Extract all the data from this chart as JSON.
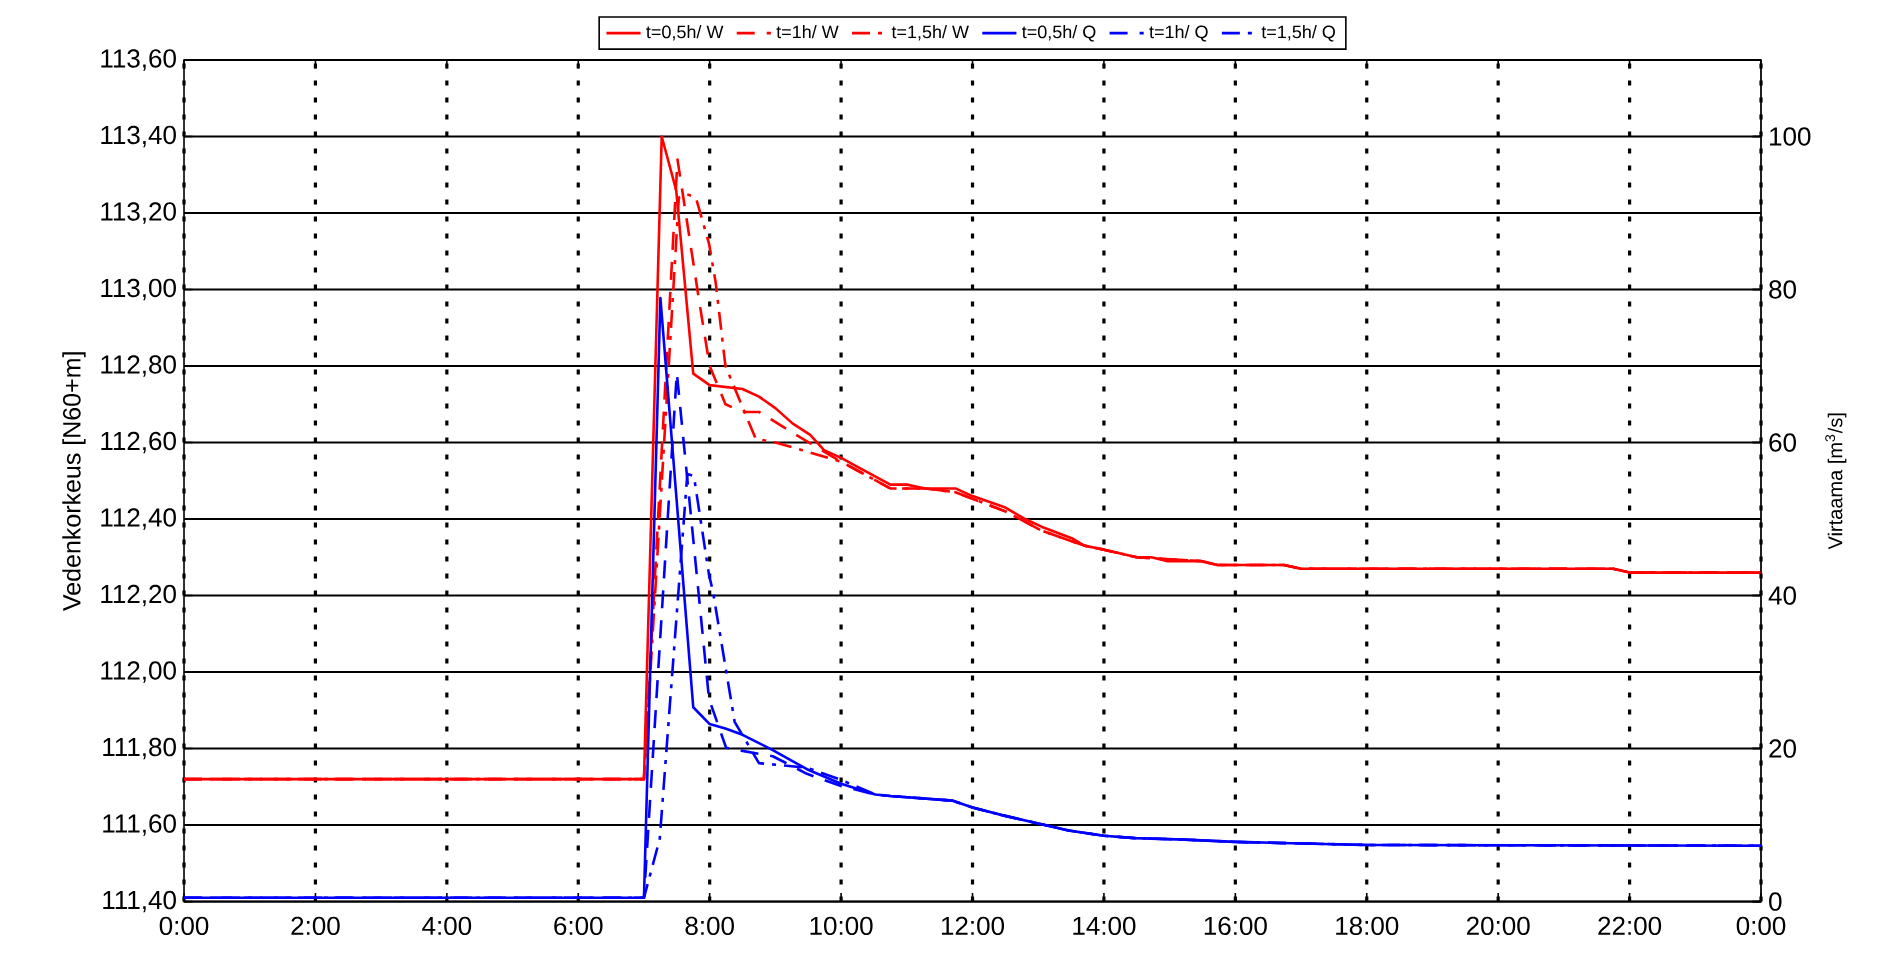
{
  "chart_data": {
    "type": "line",
    "xlabel": null,
    "ylabel": "Vedenkorkeus [N60+m]",
    "y2label": "Virtaama [m$^{3}$/s]",
    "xlim": [
      0,
      24
    ],
    "xticks": [
      {
        "value": 0,
        "label": "0:00"
      },
      {
        "value": 2,
        "label": "2:00"
      },
      {
        "value": 4,
        "label": "4:00"
      },
      {
        "value": 6,
        "label": "6:00"
      },
      {
        "value": 8,
        "label": "8:00"
      },
      {
        "value": 10,
        "label": "10:00"
      },
      {
        "value": 12,
        "label": "12:00"
      },
      {
        "value": 14,
        "label": "14:00"
      },
      {
        "value": 16,
        "label": "16:00"
      },
      {
        "value": 18,
        "label": "18:00"
      },
      {
        "value": 20,
        "label": "20:00"
      },
      {
        "value": 22,
        "label": "22:00"
      },
      {
        "value": 24,
        "label": "0:00"
      }
    ],
    "ylim": [
      111.4,
      113.6
    ],
    "yticks": [
      {
        "value": 111.4,
        "label": "111,40"
      },
      {
        "value": 111.6,
        "label": "111,60"
      },
      {
        "value": 111.8,
        "label": "111,80"
      },
      {
        "value": 112.0,
        "label": "112,00"
      },
      {
        "value": 112.2,
        "label": "112,20"
      },
      {
        "value": 112.4,
        "label": "112,40"
      },
      {
        "value": 112.6,
        "label": "112,60"
      },
      {
        "value": 112.8,
        "label": "112,80"
      },
      {
        "value": 113.0,
        "label": "113,00"
      },
      {
        "value": 113.2,
        "label": "113,20"
      },
      {
        "value": 113.4,
        "label": "113,40"
      },
      {
        "value": 113.6,
        "label": "113,60"
      }
    ],
    "y2lim": [
      0,
      110
    ],
    "y2ticks": [
      0,
      20,
      40,
      60,
      80,
      100
    ],
    "grid": true,
    "legend": "top",
    "marker": "none",
    "series": [
      {
        "name": "t=0,5h/ W",
        "color": "#ff0000",
        "line_style": "solid",
        "x": [
          0,
          7.0,
          7.27,
          7.49,
          7.75,
          8.0,
          8.5,
          8.75,
          9.0,
          9.26,
          9.53,
          9.74,
          10.0,
          10.32,
          10.75,
          11.0,
          11.28,
          11.74,
          12.0,
          12.5,
          12.8,
          13.05,
          13.51,
          13.71,
          14.0,
          14.5,
          14.72,
          14.97,
          15.48,
          15.73,
          16.74,
          17.0,
          21.75,
          22.0,
          24
        ],
        "values": [
          111.72,
          111.72,
          113.4,
          113.26,
          112.78,
          112.75,
          112.74,
          112.72,
          112.69,
          112.65,
          112.62,
          112.58,
          112.56,
          112.53,
          112.49,
          112.49,
          112.48,
          112.48,
          112.46,
          112.43,
          112.4,
          112.38,
          112.35,
          112.33,
          112.32,
          112.3,
          112.3,
          112.29,
          112.29,
          112.28,
          112.28,
          112.27,
          112.27,
          112.26,
          112.26
        ]
      },
      {
        "name": "t=1h/ W",
        "color": "#ff0000",
        "line_style": "dashed",
        "x": [
          0,
          7.0,
          7.51,
          7.84,
          8.0,
          8.24,
          8.5,
          8.75,
          9.41,
          10.0,
          10.75,
          11.28,
          11.74,
          12.5,
          13.05,
          13.71,
          14.0,
          14.5,
          15.48,
          15.73,
          16.74,
          17.0,
          21.75,
          22.0,
          24
        ],
        "values": [
          111.72,
          111.72,
          113.34,
          112.97,
          112.8,
          112.7,
          112.68,
          112.68,
          112.61,
          112.55,
          112.48,
          112.48,
          112.47,
          112.42,
          112.37,
          112.33,
          112.32,
          112.3,
          112.29,
          112.28,
          112.28,
          112.27,
          112.27,
          112.26,
          112.26
        ]
      },
      {
        "name": "t=1,5h/ W",
        "color": "#ff0000",
        "line_style": "dashdot",
        "x": [
          0,
          7.0,
          7.53,
          7.64,
          7.79,
          7.99,
          8.09,
          8.24,
          8.7,
          9.0,
          9.41,
          10.0,
          10.75,
          11.28,
          11.74,
          12.5,
          13.05,
          13.71,
          14.0,
          14.5,
          15.48,
          15.73,
          16.74,
          17.0,
          21.75,
          22.0,
          24
        ],
        "values": [
          111.72,
          111.72,
          113.24,
          113.25,
          113.24,
          113.12,
          113.02,
          112.8,
          112.61,
          112.6,
          112.58,
          112.55,
          112.48,
          112.48,
          112.47,
          112.42,
          112.37,
          112.33,
          112.32,
          112.3,
          112.29,
          112.28,
          112.28,
          112.27,
          112.27,
          112.26,
          112.26
        ]
      },
      {
        "name": "t=0,5h/ Q",
        "color": "#0000ff",
        "line_style": "solid",
        "axis": "y2",
        "x": [
          0,
          7.0,
          7.25,
          7.75,
          8.0,
          8.25,
          8.5,
          8.96,
          9.48,
          10.0,
          10.52,
          10.75,
          11.69,
          12.0,
          12.45,
          13.1,
          13.46,
          14.0,
          14.47,
          15.23,
          16.0,
          17.0,
          18.0,
          24
        ],
        "values": [
          0.5,
          0.5,
          78.9,
          25.4,
          23.2,
          22.6,
          21.8,
          19.8,
          17.3,
          15.4,
          14.0,
          13.8,
          13.2,
          12.3,
          11.3,
          10.0,
          9.3,
          8.6,
          8.3,
          8.1,
          7.8,
          7.6,
          7.4,
          7.3
        ]
      },
      {
        "name": "t=1h/ Q",
        "color": "#0000ff",
        "line_style": "dashed",
        "axis": "y2",
        "x": [
          0,
          7.0,
          7.5,
          7.99,
          8.25,
          8.5,
          8.96,
          9.48,
          10.0,
          10.52,
          10.75,
          11.69,
          12.0,
          12.45,
          13.1,
          13.46,
          14.0,
          14.47,
          15.23,
          16.0,
          17.0,
          18.0,
          24
        ],
        "values": [
          0.5,
          0.5,
          69.1,
          26.5,
          20.1,
          19.7,
          19.0,
          16.7,
          15.1,
          14.0,
          13.8,
          13.2,
          12.3,
          11.3,
          10.0,
          9.3,
          8.6,
          8.3,
          8.1,
          7.8,
          7.6,
          7.4,
          7.3
        ]
      },
      {
        "name": "t=1,5h/ Q",
        "color": "#0000ff",
        "line_style": "dashdot",
        "axis": "y2",
        "x": [
          0,
          7.0,
          7.24,
          7.66,
          7.76,
          7.99,
          8.05,
          8.38,
          8.75,
          9.48,
          10.0,
          10.52,
          10.75,
          11.69,
          12.0,
          12.45,
          13.1,
          13.46,
          14.0,
          14.47,
          15.23,
          16.0,
          17.0,
          18.0,
          24
        ],
        "values": [
          0.5,
          0.5,
          8.2,
          55.9,
          55.6,
          42.7,
          40.5,
          23.5,
          18.1,
          17.5,
          15.9,
          14.0,
          13.8,
          13.2,
          12.3,
          11.3,
          10.0,
          9.3,
          8.6,
          8.3,
          8.1,
          7.8,
          7.6,
          7.4,
          7.3
        ]
      }
    ]
  }
}
